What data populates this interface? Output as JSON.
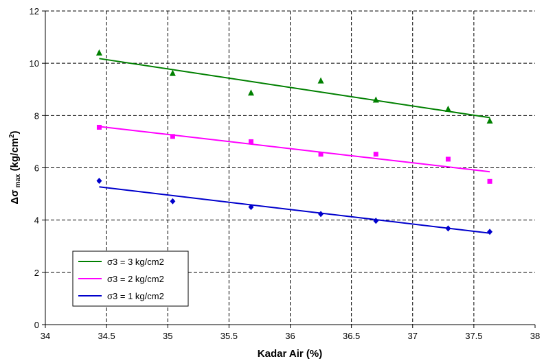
{
  "chart_data": {
    "type": "scatter",
    "title": "",
    "xlabel": "Kadar Air (%)",
    "ylabel": {
      "main": "Δσ",
      "sub": "max",
      "units_open": " (kg/cm",
      "units_sup": "2",
      "units_close": ")"
    },
    "xlim": [
      34,
      38
    ],
    "ylim": [
      0,
      12
    ],
    "x_ticks": [
      "34",
      "34.5",
      "35",
      "35.5",
      "36",
      "36.5",
      "37",
      "37.5",
      "38"
    ],
    "y_ticks": [
      "0",
      "2",
      "4",
      "6",
      "8",
      "10",
      "12"
    ],
    "grid": true,
    "legend_position": "bottom-left",
    "series": [
      {
        "name": "σ3 = 3 kg/cm2",
        "color": "#008000",
        "marker": "triangle",
        "x": [
          34.44,
          35.04,
          35.68,
          36.25,
          36.7,
          37.29,
          37.63
        ],
        "y": [
          10.4,
          9.62,
          8.87,
          9.33,
          8.6,
          8.25,
          7.8
        ],
        "trend": [
          [
            34.44,
            10.18
          ],
          [
            37.63,
            7.92
          ]
        ]
      },
      {
        "name": "σ3 = 2 kg/cm2",
        "color": "#ff00ff",
        "marker": "square",
        "x": [
          34.44,
          35.04,
          35.68,
          36.25,
          36.7,
          37.29,
          37.63
        ],
        "y": [
          7.55,
          7.2,
          7.0,
          6.52,
          6.52,
          6.33,
          5.48
        ],
        "trend": [
          [
            34.44,
            7.58
          ],
          [
            37.63,
            5.85
          ]
        ]
      },
      {
        "name": "σ3 = 1 kg/cm2",
        "color": "#0000cc",
        "marker": "diamond",
        "x": [
          34.44,
          35.04,
          35.68,
          36.25,
          36.7,
          37.29,
          37.63
        ],
        "y": [
          5.5,
          4.72,
          4.5,
          4.23,
          3.97,
          3.68,
          3.55
        ],
        "trend": [
          [
            34.44,
            5.27
          ],
          [
            37.63,
            3.5
          ]
        ]
      }
    ]
  }
}
